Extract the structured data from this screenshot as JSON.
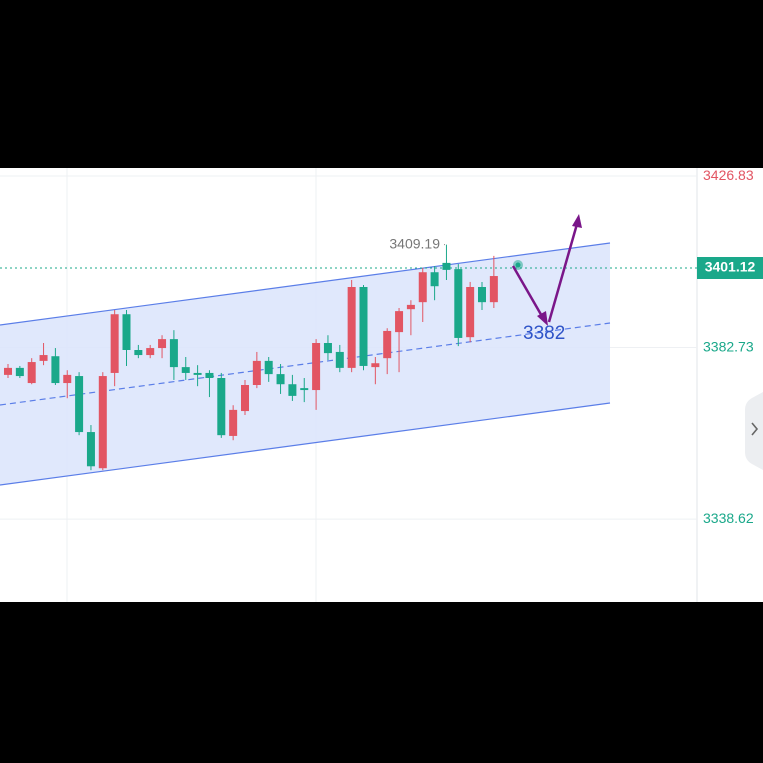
{
  "chart_data": {
    "type": "candlestick",
    "ylim": [
      3317.3,
      3428.9
    ],
    "yticks": [
      3338.62,
      3382.73,
      3426.83
    ],
    "grid": true,
    "up_color": "#e25563",
    "down_color": "#1aa88a",
    "open": [
      3375.7,
      3377.5,
      3373.6,
      3379.3,
      3380.5,
      3373.6,
      3375.4,
      3361.0,
      3351.7,
      3376.2,
      3391.3,
      3382.1,
      3380.8,
      3382.6,
      3384.9,
      3377.7,
      3376.2,
      3376.2,
      3374.9,
      3360.0,
      3366.4,
      3373.1,
      3379.3,
      3375.9,
      3373.3,
      3372.3,
      3371.8,
      3383.9,
      3381.6,
      3377.5,
      3398.3,
      3377.7,
      3380.0,
      3386.7,
      3392.6,
      3394.4,
      3402.1,
      3404.5,
      3402.9,
      3385.4,
      3398.3,
      3394.4
    ],
    "high": [
      3378.5,
      3378.0,
      3380.0,
      3383.9,
      3382.6,
      3376.9,
      3376.4,
      3362.8,
      3376.4,
      3392.4,
      3392.4,
      3383.4,
      3383.4,
      3385.9,
      3387.2,
      3380.3,
      3378.2,
      3376.9,
      3376.2,
      3367.9,
      3374.4,
      3381.6,
      3380.3,
      3378.5,
      3375.7,
      3374.9,
      3384.9,
      3385.9,
      3383.4,
      3400.1,
      3398.8,
      3380.3,
      3387.7,
      3392.9,
      3394.9,
      3403.2,
      3403.7,
      3409.19,
      3404.2,
      3399.6,
      3399.6,
      3406.3
    ],
    "low": [
      3374.9,
      3374.9,
      3373.3,
      3378.2,
      3373.1,
      3369.7,
      3360.2,
      3351.2,
      3351.2,
      3372.8,
      3378.0,
      3380.0,
      3380.0,
      3380.0,
      3374.4,
      3374.4,
      3372.8,
      3370.0,
      3359.5,
      3358.9,
      3365.4,
      3372.3,
      3373.9,
      3370.8,
      3369.0,
      3368.7,
      3366.7,
      3379.5,
      3376.4,
      3376.4,
      3376.9,
      3373.3,
      3375.9,
      3376.4,
      3385.9,
      3389.3,
      3394.9,
      3400.1,
      3383.1,
      3384.1,
      3392.4,
      3392.9
    ],
    "close": [
      3377.5,
      3375.4,
      3379.0,
      3380.8,
      3373.6,
      3375.7,
      3361.0,
      3352.2,
      3375.4,
      3391.3,
      3382.1,
      3380.8,
      3382.6,
      3384.9,
      3377.7,
      3376.2,
      3375.7,
      3374.9,
      3360.2,
      3366.7,
      3373.1,
      3379.3,
      3375.9,
      3373.3,
      3370.3,
      3371.8,
      3383.9,
      3381.3,
      3377.5,
      3398.3,
      3378.0,
      3378.7,
      3387.0,
      3392.1,
      3393.7,
      3402.1,
      3398.5,
      3402.7,
      3385.2,
      3398.3,
      3394.4,
      3401.12
    ],
    "annotation": "3382"
  }
}
